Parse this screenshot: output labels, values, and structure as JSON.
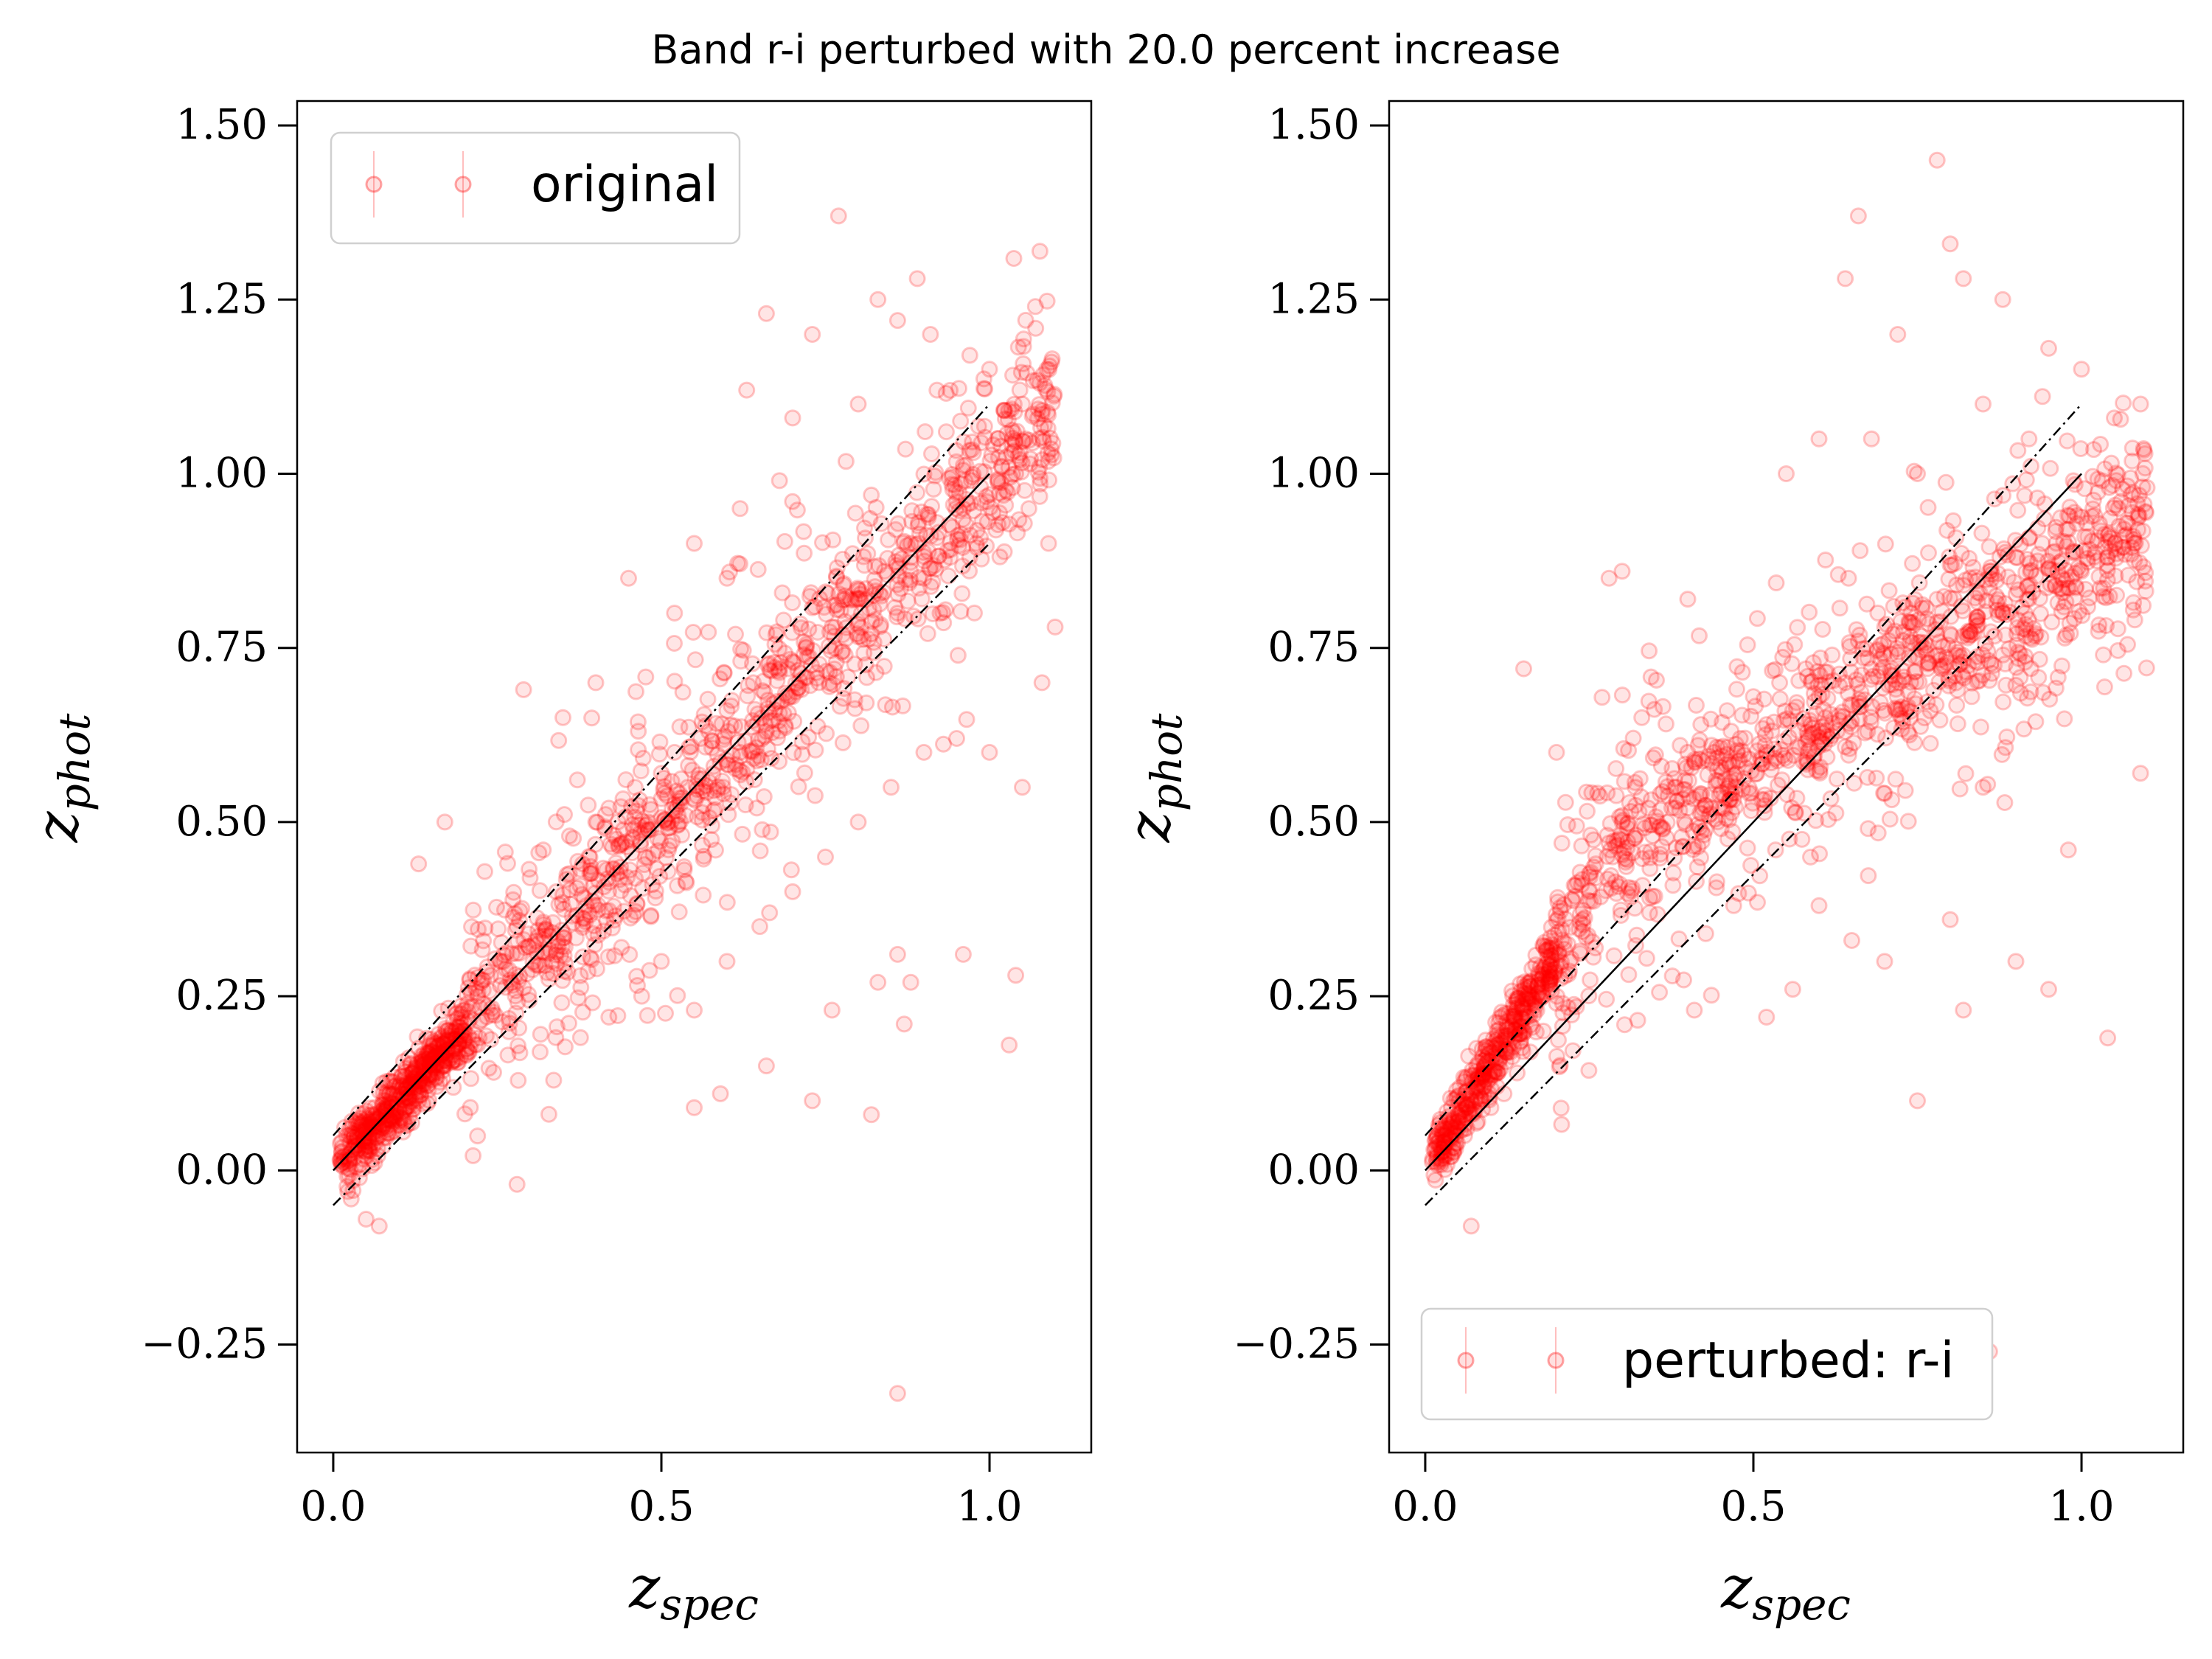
{
  "title": "Band r-i perturbed with 20.0 percent increase",
  "colors": {
    "points": "#ff0000",
    "axes": "#000000",
    "background": "#ffffff"
  },
  "chart_data": [
    {
      "type": "scatter",
      "panel": "left",
      "legend": {
        "label": "original",
        "placement": "upper left"
      },
      "xlabel_base": "z",
      "xlabel_sub": "spec",
      "ylabel_base": "z",
      "ylabel_sub": "phot",
      "xlim": [
        -0.055,
        1.155
      ],
      "ylim": [
        -0.405,
        1.535
      ],
      "xticks": [
        "0.0",
        "0.5",
        "1.0"
      ],
      "yticks": [
        "−0.25",
        "0.00",
        "0.25",
        "0.50",
        "0.75",
        "1.00",
        "1.25",
        "1.50"
      ],
      "grid": false,
      "reference_lines": [
        {
          "name": "identity",
          "style": "solid",
          "x": [
            0,
            1
          ],
          "y": [
            0,
            1
          ]
        },
        {
          "name": "upper",
          "style": "dashdot",
          "x": [
            0,
            1
          ],
          "y": [
            0.05,
            1.1
          ]
        },
        {
          "name": "lower",
          "style": "dashdot",
          "x": [
            0,
            1
          ],
          "y": [
            -0.05,
            0.9
          ]
        }
      ],
      "points": [
        [
          0.02,
          0.05
        ],
        [
          0.03,
          0.03
        ],
        [
          0.04,
          0.07
        ],
        [
          0.05,
          0.02
        ],
        [
          0.06,
          0.08
        ],
        [
          0.07,
          0.05
        ],
        [
          0.08,
          0.1
        ],
        [
          0.09,
          0.07
        ],
        [
          0.1,
          0.12
        ],
        [
          0.11,
          0.09
        ],
        [
          0.12,
          0.14
        ],
        [
          0.13,
          0.1
        ],
        [
          0.14,
          0.16
        ],
        [
          0.15,
          0.13
        ],
        [
          0.16,
          0.18
        ],
        [
          0.17,
          0.15
        ],
        [
          0.18,
          0.2
        ],
        [
          0.19,
          0.17
        ],
        [
          0.2,
          0.23
        ],
        [
          0.22,
          0.25
        ],
        [
          0.24,
          0.28
        ],
        [
          0.26,
          0.3
        ],
        [
          0.28,
          0.35
        ],
        [
          0.3,
          0.42
        ],
        [
          0.32,
          0.46
        ],
        [
          0.34,
          0.4
        ],
        [
          0.36,
          0.48
        ],
        [
          0.38,
          0.44
        ],
        [
          0.4,
          0.5
        ],
        [
          0.42,
          0.52
        ],
        [
          0.44,
          0.47
        ],
        [
          0.46,
          0.55
        ],
        [
          0.48,
          0.5
        ],
        [
          0.5,
          0.57
        ],
        [
          0.52,
          0.6
        ],
        [
          0.54,
          0.55
        ],
        [
          0.56,
          0.62
        ],
        [
          0.58,
          0.58
        ],
        [
          0.6,
          0.66
        ],
        [
          0.62,
          0.6
        ],
        [
          0.64,
          0.7
        ],
        [
          0.66,
          0.63
        ],
        [
          0.68,
          0.72
        ],
        [
          0.7,
          0.68
        ],
        [
          0.72,
          0.75
        ],
        [
          0.74,
          0.7
        ],
        [
          0.76,
          0.78
        ],
        [
          0.78,
          0.74
        ],
        [
          0.8,
          0.82
        ],
        [
          0.82,
          0.77
        ],
        [
          0.84,
          0.86
        ],
        [
          0.86,
          0.8
        ],
        [
          0.88,
          0.9
        ],
        [
          0.9,
          0.85
        ],
        [
          0.92,
          0.93
        ],
        [
          0.94,
          0.88
        ],
        [
          0.96,
          0.95
        ],
        [
          0.98,
          0.9
        ],
        [
          1.0,
          0.97
        ],
        [
          1.02,
          0.93
        ],
        [
          1.04,
          1.0
        ],
        [
          1.06,
          0.95
        ],
        [
          1.08,
          1.02
        ],
        [
          1.09,
          0.9
        ],
        [
          0.05,
          -0.07
        ],
        [
          0.07,
          -0.08
        ],
        [
          0.13,
          0.44
        ],
        [
          0.17,
          0.5
        ],
        [
          0.28,
          -0.02
        ],
        [
          0.29,
          0.69
        ],
        [
          0.55,
          0.09
        ],
        [
          0.59,
          0.11
        ],
        [
          0.66,
          0.15
        ],
        [
          0.73,
          0.1
        ],
        [
          0.76,
          0.23
        ],
        [
          0.82,
          0.08
        ],
        [
          0.83,
          0.27
        ],
        [
          0.86,
          0.31
        ],
        [
          0.86,
          -0.32
        ],
        [
          0.87,
          0.21
        ],
        [
          0.88,
          0.27
        ],
        [
          0.96,
          0.31
        ],
        [
          1.03,
          0.18
        ],
        [
          1.04,
          0.28
        ],
        [
          0.66,
          1.23
        ],
        [
          0.73,
          1.2
        ],
        [
          0.77,
          1.37
        ],
        [
          0.83,
          1.25
        ],
        [
          0.86,
          1.22
        ],
        [
          0.89,
          1.28
        ],
        [
          0.91,
          1.2
        ],
        [
          0.97,
          1.17
        ],
        [
          1.07,
          1.24
        ],
        [
          0.63,
          1.12
        ],
        [
          0.7,
          1.08
        ],
        [
          0.8,
          1.1
        ],
        [
          0.92,
          1.12
        ],
        [
          1.0,
          1.15
        ],
        [
          1.05,
          1.1
        ],
        [
          0.35,
          0.65
        ],
        [
          0.4,
          0.7
        ],
        [
          0.45,
          0.85
        ],
        [
          0.52,
          0.8
        ],
        [
          0.55,
          0.9
        ],
        [
          0.6,
          0.85
        ],
        [
          0.62,
          0.95
        ],
        [
          0.68,
          0.99
        ],
        [
          0.6,
          0.3
        ],
        [
          0.65,
          0.35
        ],
        [
          0.7,
          0.4
        ],
        [
          0.75,
          0.45
        ],
        [
          0.42,
          0.22
        ],
        [
          0.47,
          0.25
        ],
        [
          0.5,
          0.3
        ],
        [
          0.55,
          0.23
        ],
        [
          0.8,
          0.5
        ],
        [
          0.85,
          0.55
        ],
        [
          0.9,
          0.6
        ],
        [
          0.95,
          0.62
        ],
        [
          1.0,
          0.6
        ],
        [
          1.05,
          0.55
        ],
        [
          1.08,
          0.7
        ],
        [
          1.1,
          0.78
        ]
      ],
      "density_band": {
        "half_width_core": 0.09,
        "wide_fraction": 0.45,
        "half_width_wide": 0.22
      }
    },
    {
      "type": "scatter",
      "panel": "right",
      "legend": {
        "label": "perturbed: r-i",
        "placement": "lower left"
      },
      "xlabel_base": "z",
      "xlabel_sub": "spec",
      "ylabel_base": "z",
      "ylabel_sub": "phot",
      "xlim": [
        -0.055,
        1.155
      ],
      "ylim": [
        -0.405,
        1.535
      ],
      "xticks": [
        "0.0",
        "0.5",
        "1.0"
      ],
      "yticks": [
        "−0.25",
        "0.00",
        "0.25",
        "0.50",
        "0.75",
        "1.00",
        "1.25",
        "1.50"
      ],
      "grid": false,
      "reference_lines": [
        {
          "name": "identity",
          "style": "solid",
          "x": [
            0,
            1
          ],
          "y": [
            0,
            1
          ]
        },
        {
          "name": "upper",
          "style": "dashdot",
          "x": [
            0,
            1
          ],
          "y": [
            0.05,
            1.1
          ]
        },
        {
          "name": "lower",
          "style": "dashdot",
          "x": [
            0,
            1
          ],
          "y": [
            -0.05,
            0.9
          ]
        }
      ],
      "points": [
        [
          0.02,
          0.04
        ],
        [
          0.03,
          0.06
        ],
        [
          0.04,
          0.02
        ],
        [
          0.05,
          0.08
        ],
        [
          0.06,
          0.05
        ],
        [
          0.07,
          0.1
        ],
        [
          0.08,
          0.07
        ],
        [
          0.09,
          0.12
        ],
        [
          0.1,
          0.09
        ],
        [
          0.11,
          0.14
        ],
        [
          0.12,
          0.11
        ],
        [
          0.13,
          0.17
        ],
        [
          0.14,
          0.14
        ],
        [
          0.15,
          0.2
        ],
        [
          0.16,
          0.17
        ],
        [
          0.17,
          0.23
        ],
        [
          0.18,
          0.2
        ],
        [
          0.19,
          0.27
        ],
        [
          0.2,
          0.24
        ],
        [
          0.22,
          0.3
        ],
        [
          0.24,
          0.36
        ],
        [
          0.26,
          0.42
        ],
        [
          0.28,
          0.47
        ],
        [
          0.3,
          0.5
        ],
        [
          0.32,
          0.55
        ],
        [
          0.34,
          0.52
        ],
        [
          0.36,
          0.58
        ],
        [
          0.38,
          0.55
        ],
        [
          0.4,
          0.6
        ],
        [
          0.42,
          0.64
        ],
        [
          0.44,
          0.6
        ],
        [
          0.46,
          0.66
        ],
        [
          0.48,
          0.62
        ],
        [
          0.5,
          0.68
        ],
        [
          0.52,
          0.64
        ],
        [
          0.54,
          0.7
        ],
        [
          0.56,
          0.66
        ],
        [
          0.58,
          0.72
        ],
        [
          0.6,
          0.68
        ],
        [
          0.62,
          0.74
        ],
        [
          0.64,
          0.7
        ],
        [
          0.66,
          0.76
        ],
        [
          0.68,
          0.72
        ],
        [
          0.7,
          0.78
        ],
        [
          0.72,
          0.74
        ],
        [
          0.74,
          0.8
        ],
        [
          0.76,
          0.75
        ],
        [
          0.78,
          0.82
        ],
        [
          0.8,
          0.77
        ],
        [
          0.82,
          0.84
        ],
        [
          0.84,
          0.79
        ],
        [
          0.86,
          0.86
        ],
        [
          0.88,
          0.8
        ],
        [
          0.9,
          0.88
        ],
        [
          0.92,
          0.82
        ],
        [
          0.94,
          0.9
        ],
        [
          0.96,
          0.84
        ],
        [
          0.98,
          0.92
        ],
        [
          1.0,
          0.86
        ],
        [
          1.02,
          0.94
        ],
        [
          1.04,
          0.88
        ],
        [
          1.06,
          0.96
        ],
        [
          1.08,
          0.9
        ],
        [
          1.1,
          0.98
        ],
        [
          0.07,
          -0.08
        ],
        [
          0.15,
          0.72
        ],
        [
          0.2,
          0.6
        ],
        [
          0.25,
          0.4
        ],
        [
          0.28,
          0.85
        ],
        [
          0.3,
          0.86
        ],
        [
          0.33,
          0.65
        ],
        [
          0.4,
          0.82
        ],
        [
          0.41,
          0.23
        ],
        [
          0.47,
          0.38
        ],
        [
          0.52,
          0.22
        ],
        [
          0.56,
          0.26
        ],
        [
          0.6,
          0.38
        ],
        [
          0.65,
          0.33
        ],
        [
          0.7,
          0.3
        ],
        [
          0.75,
          0.1
        ],
        [
          0.8,
          0.36
        ],
        [
          0.82,
          0.23
        ],
        [
          0.85,
          0.55
        ],
        [
          0.9,
          0.3
        ],
        [
          0.95,
          0.26
        ],
        [
          0.98,
          0.46
        ],
        [
          1.04,
          0.19
        ],
        [
          1.09,
          0.57
        ],
        [
          0.86,
          -0.26
        ],
        [
          0.78,
          1.45
        ],
        [
          0.66,
          1.37
        ],
        [
          0.64,
          1.28
        ],
        [
          0.8,
          1.33
        ],
        [
          0.82,
          1.28
        ],
        [
          0.88,
          1.25
        ],
        [
          0.95,
          1.18
        ],
        [
          1.0,
          1.15
        ],
        [
          0.72,
          1.2
        ],
        [
          0.85,
          1.1
        ],
        [
          0.92,
          1.05
        ],
        [
          1.05,
          1.08
        ],
        [
          1.09,
          1.1
        ],
        [
          0.55,
          1.0
        ],
        [
          0.6,
          1.05
        ],
        [
          0.68,
          1.05
        ],
        [
          0.75,
          1.0
        ]
      ],
      "density_band": {
        "half_width_core": 0.1,
        "wide_fraction": 0.4,
        "half_width_wide": 0.22
      }
    }
  ]
}
